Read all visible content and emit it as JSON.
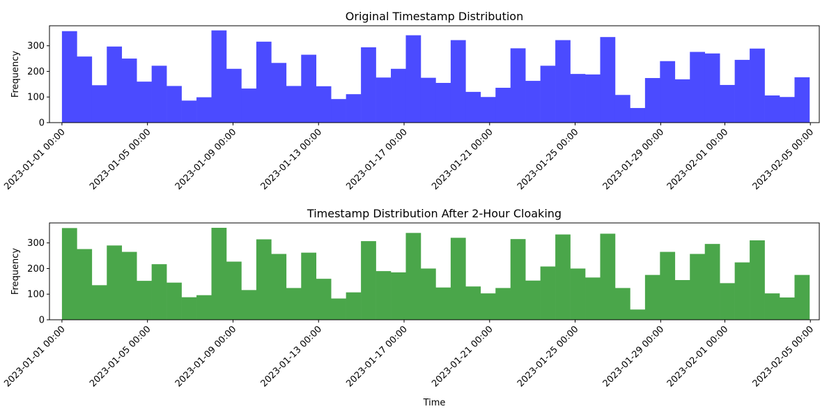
{
  "chart_data": [
    {
      "type": "bar",
      "title": "Original Timestamp Distribution",
      "xlabel": "",
      "ylabel": "Frequency",
      "color": "#4b4bff",
      "ylim": [
        0,
        378
      ],
      "yticks": [
        0,
        100,
        200,
        300
      ],
      "xlim": [
        "2022-12-31T10:00",
        "2023-02-05T10:00"
      ],
      "bins": {
        "start": "2023-01-01T00:00",
        "end": "2023-02-04T23:00",
        "count": 50
      },
      "xticks": [
        {
          "t": "2023-01-01T00:00",
          "label": "2023-01-01 00:00"
        },
        {
          "t": "2023-01-05T00:00",
          "label": "2023-01-05 00:00"
        },
        {
          "t": "2023-01-09T00:00",
          "label": "2023-01-09 00:00"
        },
        {
          "t": "2023-01-13T00:00",
          "label": "2023-01-13 00:00"
        },
        {
          "t": "2023-01-17T00:00",
          "label": "2023-01-17 00:00"
        },
        {
          "t": "2023-01-21T00:00",
          "label": "2023-01-21 00:00"
        },
        {
          "t": "2023-01-25T00:00",
          "label": "2023-01-25 00:00"
        },
        {
          "t": "2023-01-29T00:00",
          "label": "2023-01-29 00:00"
        },
        {
          "t": "2023-02-01T00:00",
          "label": "2023-02-01 00:00"
        },
        {
          "t": "2023-02-05T00:00",
          "label": "2023-02-05 00:00"
        }
      ],
      "values": [
        357,
        258,
        146,
        297,
        250,
        160,
        222,
        143,
        86,
        99,
        360,
        210,
        133,
        316,
        233,
        143,
        265,
        142,
        92,
        111,
        294,
        176,
        210,
        341,
        175,
        155,
        322,
        120,
        100,
        136,
        290,
        163,
        222,
        322,
        190,
        188,
        334,
        108,
        57,
        174,
        240,
        169,
        276,
        270,
        147,
        245,
        289,
        106,
        100,
        177
      ]
    },
    {
      "type": "bar",
      "title": "Timestamp Distribution After 2-Hour Cloaking",
      "xlabel": "Time",
      "ylabel": "Frequency",
      "color": "#4aa64a",
      "ylim": [
        0,
        378
      ],
      "yticks": [
        0,
        100,
        200,
        300
      ],
      "xlim": [
        "2022-12-31T10:00",
        "2023-02-05T10:00"
      ],
      "bins": {
        "start": "2023-01-01T00:00",
        "end": "2023-02-04T23:00",
        "count": 50
      },
      "xticks": [
        {
          "t": "2023-01-01T00:00",
          "label": "2023-01-01 00:00"
        },
        {
          "t": "2023-01-05T00:00",
          "label": "2023-01-05 00:00"
        },
        {
          "t": "2023-01-09T00:00",
          "label": "2023-01-09 00:00"
        },
        {
          "t": "2023-01-13T00:00",
          "label": "2023-01-13 00:00"
        },
        {
          "t": "2023-01-17T00:00",
          "label": "2023-01-17 00:00"
        },
        {
          "t": "2023-01-21T00:00",
          "label": "2023-01-21 00:00"
        },
        {
          "t": "2023-01-25T00:00",
          "label": "2023-01-25 00:00"
        },
        {
          "t": "2023-01-29T00:00",
          "label": "2023-01-29 00:00"
        },
        {
          "t": "2023-02-01T00:00",
          "label": "2023-02-01 00:00"
        },
        {
          "t": "2023-02-05T00:00",
          "label": "2023-02-05 00:00"
        }
      ],
      "values": [
        358,
        276,
        135,
        290,
        265,
        152,
        217,
        145,
        88,
        96,
        359,
        227,
        116,
        314,
        257,
        124,
        262,
        160,
        83,
        107,
        307,
        190,
        185,
        339,
        200,
        126,
        320,
        130,
        103,
        124,
        315,
        153,
        208,
        333,
        200,
        165,
        336,
        124,
        40,
        175,
        265,
        155,
        257,
        296,
        143,
        224,
        310,
        103,
        87,
        175
      ]
    }
  ]
}
